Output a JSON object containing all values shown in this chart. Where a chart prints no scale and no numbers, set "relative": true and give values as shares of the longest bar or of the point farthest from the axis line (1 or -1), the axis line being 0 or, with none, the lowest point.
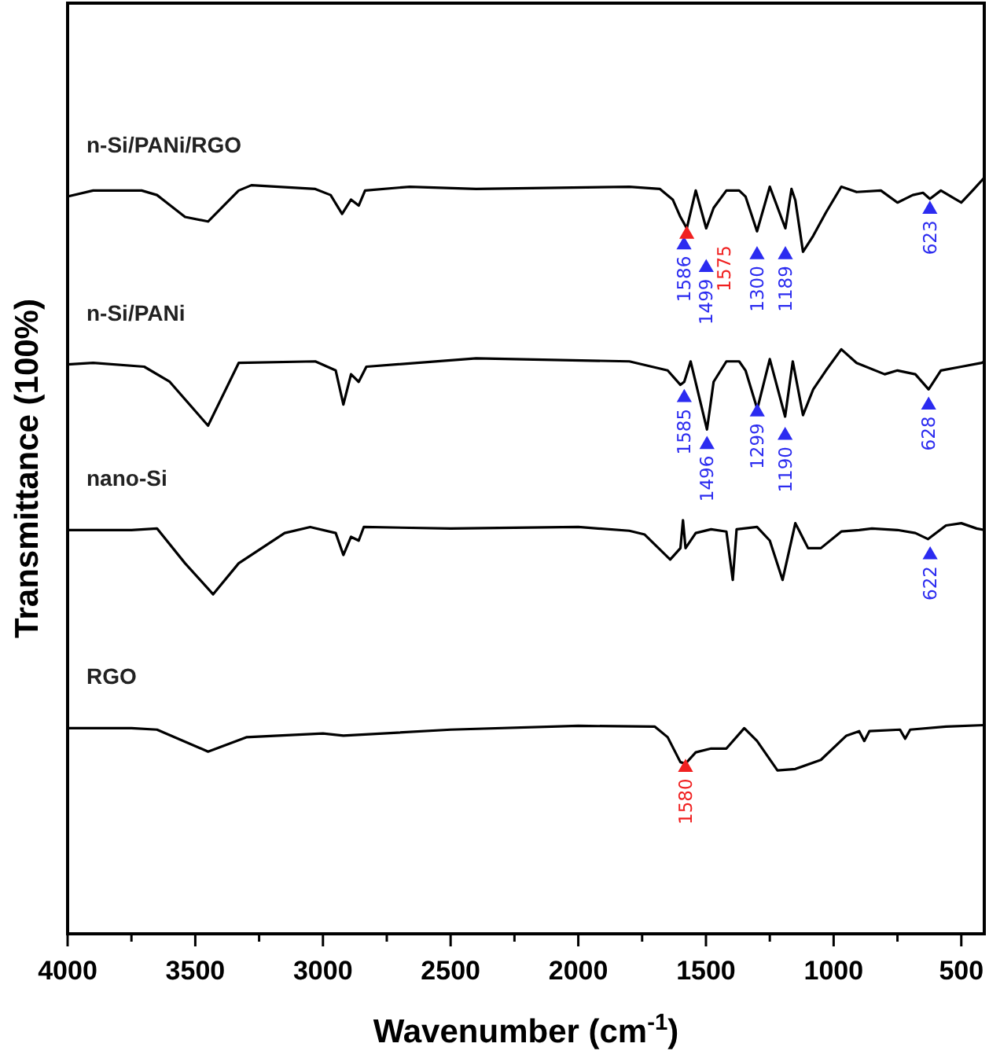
{
  "chart_data": {
    "type": "line",
    "relative": true,
    "xlabel": "Wavenumber (cm$^{-1}$)",
    "ylabel": "Transmittance (100%)",
    "legend": false,
    "marker": "none",
    "line_style": "solid",
    "tick_labels": "x",
    "xlim": [
      4000,
      410
    ],
    "xticks": [
      4000,
      {
        "value": 3750,
        "label": null
      },
      3500,
      {
        "value": 3250,
        "label": null
      },
      3000,
      {
        "value": 2750,
        "label": null
      },
      2500,
      {
        "value": 2250,
        "label": null
      },
      2000,
      {
        "value": 1750,
        "label": null
      },
      1500,
      {
        "value": 1250,
        "label": null
      },
      1000,
      {
        "value": 750,
        "label": null
      },
      500
    ],
    "series": [
      {
        "name": "n-Si/PANi/RGO",
        "color": "#000000",
        "x": [
          4000,
          3900,
          3710,
          3650,
          3540,
          3450,
          3330,
          3280,
          3030,
          2970,
          2925,
          2890,
          2860,
          2835,
          2660,
          2400,
          1800,
          1680,
          1630,
          1600,
          1575,
          1540,
          1499,
          1470,
          1420,
          1370,
          1345,
          1300,
          1250,
          1189,
          1165,
          1150,
          1120,
          1080,
          1030,
          970,
          910,
          815,
          750,
          690,
          650,
          623,
          580,
          500,
          450,
          410
        ],
        "values": [
          0.975,
          0.983,
          0.983,
          0.977,
          0.948,
          0.942,
          0.983,
          0.99,
          0.985,
          0.977,
          0.952,
          0.971,
          0.963,
          0.983,
          0.988,
          0.985,
          0.988,
          0.985,
          0.971,
          0.948,
          0.933,
          0.983,
          0.933,
          0.96,
          0.983,
          0.983,
          0.975,
          0.929,
          0.988,
          0.933,
          0.985,
          0.97,
          0.902,
          0.923,
          0.954,
          0.988,
          0.981,
          0.983,
          0.967,
          0.977,
          0.98,
          0.972,
          0.983,
          0.967,
          0.985,
          1
        ]
      },
      {
        "name": "n-Si/PANi",
        "color": "#000000",
        "x": [
          4000,
          3900,
          3700,
          3600,
          3450,
          3330,
          3030,
          2950,
          2920,
          2890,
          2860,
          2830,
          2400,
          1800,
          1650,
          1600,
          1585,
          1560,
          1496,
          1470,
          1420,
          1370,
          1345,
          1299,
          1250,
          1190,
          1160,
          1120,
          1080,
          1030,
          970,
          910,
          800,
          750,
          680,
          628,
          580,
          500,
          420,
          410
        ],
        "values": [
          0.753,
          0.755,
          0.75,
          0.73,
          0.672,
          0.755,
          0.757,
          0.745,
          0.7,
          0.74,
          0.73,
          0.75,
          0.761,
          0.757,
          0.745,
          0.726,
          0.73,
          0.757,
          0.667,
          0.73,
          0.757,
          0.757,
          0.745,
          0.694,
          0.76,
          0.684,
          0.757,
          0.686,
          0.72,
          0.745,
          0.773,
          0.755,
          0.74,
          0.745,
          0.74,
          0.72,
          0.745,
          0.75,
          0.755,
          0.757
        ]
      },
      {
        "name": "nano-Si",
        "color": "#000000",
        "x": [
          4000,
          3750,
          3650,
          3540,
          3430,
          3330,
          3150,
          3050,
          2950,
          2920,
          2890,
          2860,
          2840,
          2500,
          2000,
          1800,
          1740,
          1640,
          1600,
          1590,
          1580,
          1540,
          1480,
          1420,
          1395,
          1380,
          1300,
          1250,
          1200,
          1150,
          1100,
          1050,
          970,
          900,
          850,
          750,
          680,
          630,
          560,
          500,
          440,
          410
        ],
        "values": [
          0.534,
          0.534,
          0.536,
          0.49,
          0.449,
          0.49,
          0.53,
          0.538,
          0.53,
          0.501,
          0.525,
          0.52,
          0.538,
          0.536,
          0.538,
          0.533,
          0.528,
          0.495,
          0.51,
          0.547,
          0.51,
          0.53,
          0.535,
          0.532,
          0.468,
          0.535,
          0.538,
          0.52,
          0.468,
          0.543,
          0.51,
          0.51,
          0.532,
          0.534,
          0.536,
          0.534,
          0.53,
          0.522,
          0.54,
          0.543,
          0.536,
          0.534
        ]
      },
      {
        "name": "RGO",
        "color": "#000000",
        "x": [
          4000,
          3750,
          3650,
          3450,
          3300,
          3000,
          2920,
          2500,
          2000,
          1700,
          1650,
          1600,
          1580,
          1540,
          1480,
          1420,
          1350,
          1300,
          1220,
          1150,
          1050,
          950,
          900,
          880,
          860,
          740,
          720,
          700,
          560,
          410
        ],
        "values": [
          0.272,
          0.272,
          0.27,
          0.241,
          0.26,
          0.265,
          0.262,
          0.27,
          0.275,
          0.274,
          0.26,
          0.227,
          0.225,
          0.24,
          0.245,
          0.245,
          0.272,
          0.255,
          0.216,
          0.218,
          0.23,
          0.262,
          0.268,
          0.255,
          0.268,
          0.27,
          0.258,
          0.27,
          0.274,
          0.276
        ]
      },
      {
        "type": "scatter",
        "marker": "triangle",
        "color": "#2b2bf0",
        "x": [
          1586,
          1499,
          1300,
          1189,
          623,
          1585,
          1496,
          1299,
          1190,
          628,
          622
        ],
        "values": [
          0.911,
          0.881,
          0.898,
          0.898,
          0.958,
          0.709,
          0.647,
          0.69,
          0.659,
          0.699,
          0.501
        ]
      },
      {
        "type": "scatter",
        "marker": "triangle",
        "color": "#f02020",
        "x": [
          1575,
          1580
        ],
        "values": [
          0.925,
          0.22
        ]
      }
    ],
    "annotations": [
      {
        "text": "1586",
        "x": 1586,
        "y": 0.911
      },
      {
        "text": "1575",
        "x": 1575,
        "y": 0.925
      },
      {
        "text": "1499",
        "x": 1499,
        "y": 0.881
      },
      {
        "text": "1300",
        "x": 1300,
        "y": 0.898
      },
      {
        "text": "1189",
        "x": 1189,
        "y": 0.898
      },
      {
        "text": "623",
        "x": 623,
        "y": 0.958
      },
      {
        "text": "1585",
        "x": 1585,
        "y": 0.709
      },
      {
        "text": "1496",
        "x": 1496,
        "y": 0.647
      },
      {
        "text": "1299",
        "x": 1299,
        "y": 0.69
      },
      {
        "text": "1190",
        "x": 1190,
        "y": 0.659
      },
      {
        "text": "628",
        "x": 628,
        "y": 0.699
      },
      {
        "text": "622",
        "x": 622,
        "y": 0.501
      },
      {
        "text": "1580",
        "x": 1580,
        "y": 0.22
      }
    ]
  }
}
